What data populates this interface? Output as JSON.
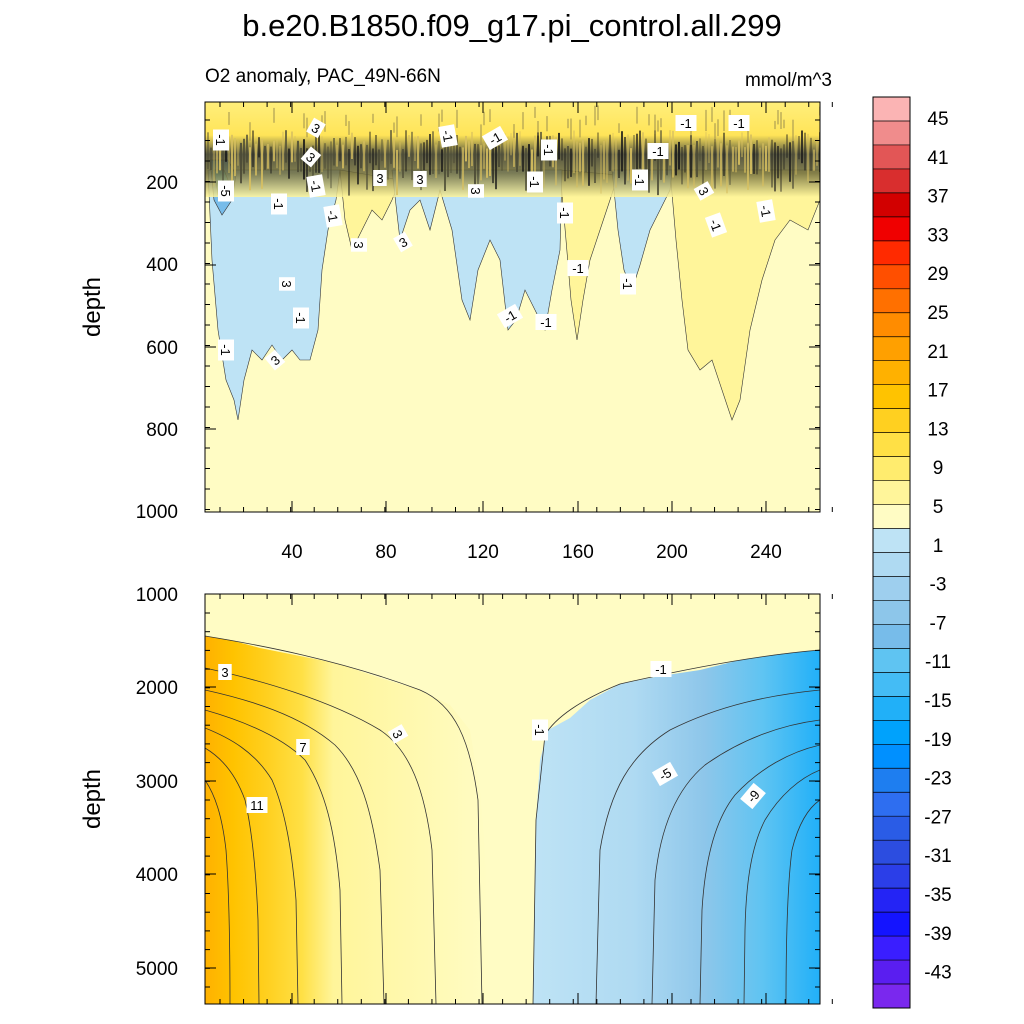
{
  "chart_data": {
    "type": "contour",
    "title": "b.e20.B1850.f09_g17.pi_control.all.299",
    "subtitle_left": "O2 anomaly, PAC_49N-66N",
    "units": "mmol/m^3",
    "colorbar": {
      "labels": [
        "45",
        "41",
        "37",
        "33",
        "29",
        "25",
        "21",
        "17",
        "13",
        "9",
        "5",
        "1",
        "-3",
        "-7",
        "-11",
        "-15",
        "-19",
        "-23",
        "-27",
        "-31",
        "-35",
        "-39",
        "-43"
      ],
      "colors": [
        "#FBB4B4",
        "#F08C8C",
        "#E25656",
        "#D92E2E",
        "#D20000",
        "#F00000",
        "#FF2A00",
        "#FF4F00",
        "#FF7000",
        "#FF8C00",
        "#FFA000",
        "#FFB100",
        "#FFC300",
        "#FFD020",
        "#FFE045",
        "#FFEC6E",
        "#FFF59A",
        "#FFFCC4",
        "#BEE3F5",
        "#AFDAF2",
        "#9ECFEE",
        "#8DC6EA",
        "#77BCEA",
        "#5FC4F2",
        "#44BCF5",
        "#21B0F8",
        "#00A2FC",
        "#0090FF",
        "#1E7EF0",
        "#2E6EF0",
        "#2A5CE6",
        "#2C4DE0",
        "#2B3EE8",
        "#2424F5",
        "#1414FF",
        "#3A1EFF",
        "#5A1EF0",
        "#7A28EE"
      ]
    },
    "panels": [
      {
        "name": "upper",
        "ylabel": "depth",
        "xticks": [
          "40",
          "80",
          "120",
          "160",
          "200",
          "240"
        ],
        "yticks": [
          "200",
          "400",
          "600",
          "800",
          "1000"
        ],
        "ylim": [
          0,
          1000
        ],
        "xlim": [
          0,
          262
        ],
        "contour_labels": [
          "-1",
          "3",
          "-1",
          "-1",
          "-1",
          "3",
          "3",
          "-1",
          "-5",
          "3",
          "-1",
          "-1",
          "-1",
          "-1",
          "3",
          "-1",
          "-1",
          "-1",
          "-1",
          "3",
          "-1",
          "-1",
          "3",
          "3",
          "-1",
          "-1",
          "3",
          "-1",
          "-1",
          "-1",
          "-1",
          "3"
        ]
      },
      {
        "name": "lower",
        "ylabel": "depth",
        "yticks": [
          "1000",
          "2000",
          "3000",
          "4000",
          "5000"
        ],
        "ylim": [
          1000,
          5370
        ],
        "xlim": [
          0,
          262
        ],
        "contour_labels": [
          "3",
          "7",
          "11",
          "3",
          "-1",
          "-1",
          "-5",
          "-9"
        ]
      }
    ]
  }
}
